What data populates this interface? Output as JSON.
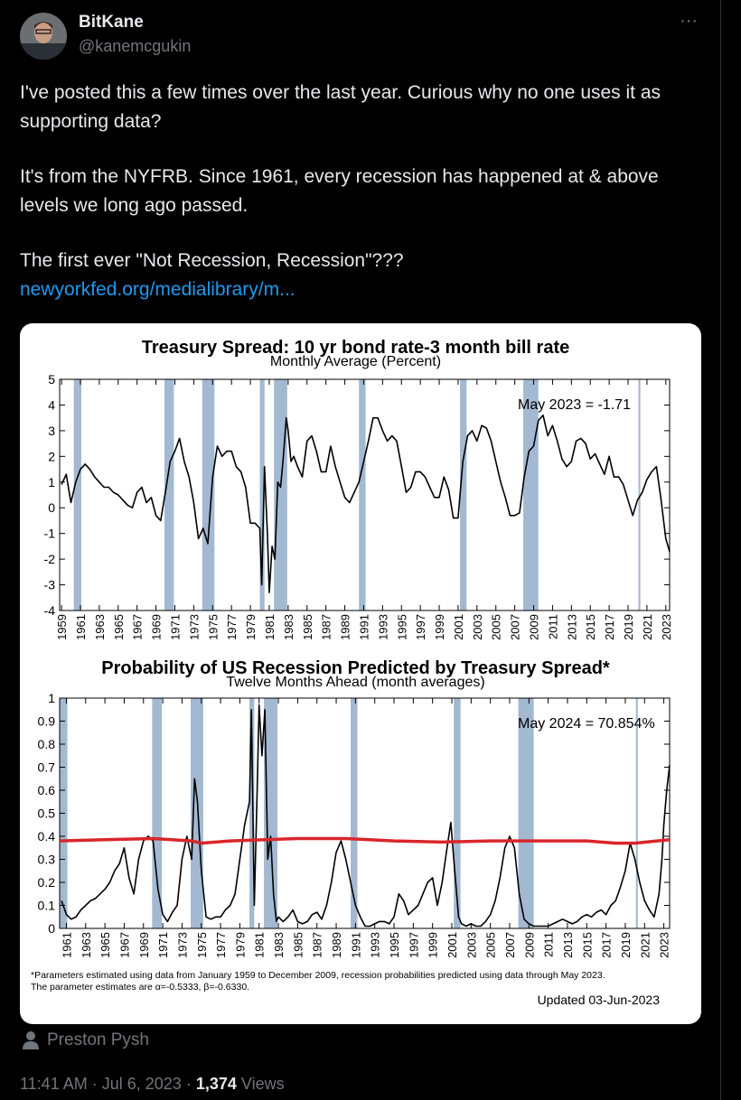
{
  "tweet": {
    "author_name": "BitKane",
    "handle": "@kanemcgukin",
    "more": "···",
    "paragraphs": [
      "I've posted this a few times over the last year. Curious why no one uses it as supporting data?",
      "It's from the NYFRB. Since 1961, every recession has happened at & above levels we long ago passed.",
      "The first ever \"Not Recession, Recession\"???"
    ],
    "link": "newyorkfed.org/medialibrary/m...",
    "attribution": "Preston Pysh",
    "time": "11:41 AM",
    "separator": "·",
    "date": "Jul 6, 2023",
    "views_count": "1,374",
    "views_label": "Views"
  },
  "chart_data": [
    {
      "type": "line",
      "title": "Treasury Spread: 10 yr bond rate-3 month bill rate",
      "subtitle": "Monthly Average (Percent)",
      "annotation": "May 2023 = -1.71",
      "band_color": "#a3b9d2",
      "xlim": [
        1958.8,
        2023.4
      ],
      "ylim": [
        -4,
        5
      ],
      "xticks": [
        1959,
        1961,
        1963,
        1965,
        1967,
        1969,
        1971,
        1973,
        1975,
        1977,
        1979,
        1981,
        1983,
        1985,
        1987,
        1989,
        1991,
        1993,
        1995,
        1997,
        1999,
        2001,
        2003,
        2005,
        2007,
        2009,
        2011,
        2013,
        2015,
        2017,
        2019,
        2021,
        2023
      ],
      "yticks": [
        -4,
        -3,
        -2,
        -1,
        0,
        1,
        2,
        3,
        4,
        5
      ],
      "recessions": [
        [
          1960.3,
          1961.1
        ],
        [
          1969.9,
          1970.9
        ],
        [
          1973.9,
          1975.2
        ],
        [
          1980.0,
          1980.5
        ],
        [
          1981.5,
          1982.9
        ],
        [
          1990.5,
          1991.2
        ],
        [
          2001.2,
          2001.9
        ],
        [
          2007.9,
          2009.5
        ],
        [
          2020.1,
          2020.3
        ]
      ],
      "series": [
        {
          "color": "#000000",
          "x": [
            1959.0,
            1959.5,
            1960.0,
            1960.5,
            1961.0,
            1961.5,
            1962.0,
            1962.5,
            1963.0,
            1963.5,
            1964.0,
            1964.5,
            1965.0,
            1965.5,
            1966.0,
            1966.5,
            1967.0,
            1967.5,
            1968.0,
            1968.5,
            1969.0,
            1969.5,
            1970.0,
            1970.5,
            1971.0,
            1971.5,
            1972.0,
            1972.5,
            1973.0,
            1973.5,
            1974.0,
            1974.5,
            1975.0,
            1975.5,
            1976.0,
            1976.5,
            1977.0,
            1977.5,
            1978.0,
            1978.5,
            1979.0,
            1979.5,
            1980.0,
            1980.2,
            1980.5,
            1980.8,
            1981.0,
            1981.3,
            1981.6,
            1981.9,
            1982.2,
            1982.5,
            1982.8,
            1983.0,
            1983.3,
            1983.6,
            1984.0,
            1984.5,
            1985.0,
            1985.5,
            1986.0,
            1986.5,
            1987.0,
            1987.5,
            1988.0,
            1988.5,
            1989.0,
            1989.5,
            1990.0,
            1990.5,
            1991.0,
            1991.5,
            1992.0,
            1992.5,
            1993.0,
            1993.5,
            1994.0,
            1994.5,
            1995.0,
            1995.5,
            1996.0,
            1996.5,
            1997.0,
            1997.5,
            1998.0,
            1998.5,
            1999.0,
            1999.5,
            2000.0,
            2000.5,
            2001.0,
            2001.5,
            2002.0,
            2002.5,
            2003.0,
            2003.5,
            2004.0,
            2004.5,
            2005.0,
            2005.5,
            2006.0,
            2006.5,
            2007.0,
            2007.5,
            2008.0,
            2008.5,
            2009.0,
            2009.5,
            2010.0,
            2010.5,
            2011.0,
            2011.5,
            2012.0,
            2012.5,
            2013.0,
            2013.5,
            2014.0,
            2014.5,
            2015.0,
            2015.5,
            2016.0,
            2016.5,
            2017.0,
            2017.5,
            2018.0,
            2018.5,
            2019.0,
            2019.5,
            2020.0,
            2020.5,
            2021.0,
            2021.5,
            2022.0,
            2022.5,
            2022.8,
            2023.0,
            2023.4
          ],
          "values": [
            0.9,
            1.3,
            0.2,
            1.0,
            1.5,
            1.7,
            1.5,
            1.2,
            1.0,
            0.8,
            0.8,
            0.6,
            0.5,
            0.3,
            0.1,
            0.0,
            0.6,
            0.8,
            0.2,
            0.4,
            -0.3,
            -0.5,
            0.6,
            1.8,
            2.2,
            2.7,
            1.8,
            1.2,
            0.2,
            -1.2,
            -0.8,
            -1.4,
            1.2,
            2.4,
            2.0,
            2.2,
            2.2,
            1.6,
            1.4,
            0.8,
            -0.6,
            -0.6,
            -0.8,
            -3.0,
            1.6,
            -1.0,
            -3.3,
            -1.5,
            -2.0,
            1.0,
            0.8,
            2.0,
            3.5,
            3.0,
            1.8,
            2.0,
            1.6,
            1.2,
            2.6,
            2.8,
            2.2,
            1.4,
            1.4,
            2.4,
            1.6,
            1.0,
            0.4,
            0.2,
            0.6,
            1.0,
            1.8,
            2.6,
            3.5,
            3.5,
            3.0,
            2.6,
            2.8,
            2.6,
            1.6,
            0.6,
            0.8,
            1.4,
            1.4,
            1.2,
            0.8,
            0.4,
            0.4,
            1.2,
            0.7,
            -0.4,
            -0.4,
            1.8,
            2.8,
            3.0,
            2.6,
            3.2,
            3.1,
            2.6,
            1.8,
            1.0,
            0.4,
            -0.3,
            -0.3,
            -0.2,
            1.2,
            2.2,
            2.4,
            3.4,
            3.6,
            2.8,
            3.2,
            2.6,
            1.9,
            1.6,
            1.8,
            2.6,
            2.7,
            2.5,
            1.9,
            2.1,
            1.7,
            1.3,
            2.0,
            1.2,
            1.2,
            0.9,
            0.3,
            -0.3,
            0.3,
            0.6,
            1.1,
            1.4,
            1.6,
            0.3,
            -0.6,
            -1.2,
            -1.71
          ]
        }
      ]
    },
    {
      "type": "line",
      "title": "Probability of US Recession Predicted by Treasury Spread*",
      "subtitle": "Twelve Months Ahead (month averages)",
      "annotation": "May 2024 = 70.854%",
      "band_color": "#a3b9d2",
      "notes": [
        "*Parameters estimated using data from January 1959 to December 2009, recession probabilities predicted using data through May 2023.",
        "The parameter estimates are α=-0.5333, β=-0.6330."
      ],
      "updated": "Updated 03-Jun-2023",
      "xlim": [
        1960.3,
        2023.6
      ],
      "ylim": [
        0,
        1
      ],
      "xticks": [
        1961,
        1963,
        1965,
        1967,
        1969,
        1971,
        1973,
        1975,
        1977,
        1979,
        1981,
        1983,
        1985,
        1987,
        1989,
        1991,
        1993,
        1995,
        1997,
        1999,
        2001,
        2003,
        2005,
        2007,
        2009,
        2011,
        2013,
        2015,
        2017,
        2019,
        2021,
        2023
      ],
      "yticks": [
        0,
        0.1,
        0.2,
        0.3,
        0.4,
        0.5,
        0.6,
        0.7,
        0.8,
        0.9,
        1
      ],
      "recessions": [
        [
          1960.3,
          1961.1
        ],
        [
          1969.9,
          1970.9
        ],
        [
          1973.9,
          1975.2
        ],
        [
          1980.0,
          1980.5
        ],
        [
          1981.5,
          1982.9
        ],
        [
          1990.5,
          1991.2
        ],
        [
          2001.2,
          2001.9
        ],
        [
          2007.9,
          2009.5
        ],
        [
          2020.1,
          2020.3
        ]
      ],
      "series": [
        {
          "color": "#000000",
          "x": [
            1960.5,
            1961.0,
            1961.5,
            1962.0,
            1962.5,
            1963.0,
            1963.5,
            1964.0,
            1964.5,
            1965.0,
            1965.5,
            1966.0,
            1966.5,
            1967.0,
            1967.5,
            1968.0,
            1968.5,
            1969.0,
            1969.5,
            1970.0,
            1970.5,
            1971.0,
            1971.5,
            1972.0,
            1972.5,
            1973.0,
            1973.5,
            1974.0,
            1974.3,
            1974.6,
            1975.0,
            1975.5,
            1976.0,
            1976.5,
            1977.0,
            1977.5,
            1978.0,
            1978.5,
            1979.0,
            1979.5,
            1980.0,
            1980.2,
            1980.5,
            1980.8,
            1981.0,
            1981.3,
            1981.6,
            1981.9,
            1982.2,
            1982.5,
            1982.8,
            1983.0,
            1983.5,
            1984.0,
            1984.5,
            1985.0,
            1985.5,
            1986.0,
            1986.5,
            1987.0,
            1987.5,
            1988.0,
            1988.5,
            1989.0,
            1989.5,
            1990.0,
            1990.5,
            1991.0,
            1991.5,
            1992.0,
            1992.5,
            1993.0,
            1993.5,
            1994.0,
            1994.5,
            1995.0,
            1995.5,
            1996.0,
            1996.5,
            1997.0,
            1997.5,
            1998.0,
            1998.5,
            1999.0,
            1999.5,
            2000.0,
            2000.5,
            2000.9,
            2001.3,
            2001.7,
            2002.0,
            2002.5,
            2003.0,
            2003.5,
            2004.0,
            2004.5,
            2005.0,
            2005.5,
            2006.0,
            2006.5,
            2007.0,
            2007.5,
            2008.0,
            2008.5,
            2009.0,
            2009.5,
            2010.0,
            2011.0,
            2012.0,
            2012.5,
            2013.0,
            2013.5,
            2014.0,
            2014.5,
            2015.0,
            2015.5,
            2016.0,
            2016.5,
            2017.0,
            2017.5,
            2018.0,
            2018.5,
            2019.0,
            2019.5,
            2020.0,
            2020.5,
            2021.0,
            2021.5,
            2022.0,
            2022.5,
            2022.8,
            2023.0,
            2023.3,
            2023.6
          ],
          "values": [
            0.12,
            0.06,
            0.04,
            0.05,
            0.08,
            0.1,
            0.12,
            0.13,
            0.15,
            0.17,
            0.2,
            0.25,
            0.28,
            0.35,
            0.22,
            0.15,
            0.3,
            0.38,
            0.4,
            0.38,
            0.17,
            0.06,
            0.03,
            0.07,
            0.1,
            0.3,
            0.4,
            0.3,
            0.65,
            0.55,
            0.25,
            0.05,
            0.04,
            0.05,
            0.05,
            0.08,
            0.1,
            0.15,
            0.3,
            0.45,
            0.55,
            0.95,
            0.1,
            0.6,
            0.97,
            0.75,
            0.95,
            0.3,
            0.4,
            0.15,
            0.03,
            0.05,
            0.03,
            0.05,
            0.08,
            0.03,
            0.02,
            0.03,
            0.06,
            0.07,
            0.04,
            0.1,
            0.2,
            0.33,
            0.38,
            0.3,
            0.2,
            0.1,
            0.05,
            0.01,
            0.01,
            0.02,
            0.03,
            0.03,
            0.02,
            0.05,
            0.15,
            0.12,
            0.06,
            0.08,
            0.1,
            0.15,
            0.2,
            0.22,
            0.1,
            0.2,
            0.35,
            0.46,
            0.25,
            0.05,
            0.02,
            0.01,
            0.02,
            0.01,
            0.01,
            0.03,
            0.06,
            0.12,
            0.22,
            0.35,
            0.4,
            0.35,
            0.15,
            0.04,
            0.02,
            0.01,
            0.01,
            0.01,
            0.03,
            0.04,
            0.03,
            0.02,
            0.03,
            0.05,
            0.06,
            0.05,
            0.07,
            0.08,
            0.06,
            0.1,
            0.12,
            0.18,
            0.25,
            0.37,
            0.3,
            0.2,
            0.12,
            0.08,
            0.05,
            0.15,
            0.3,
            0.45,
            0.6,
            0.70854
          ]
        },
        {
          "color": "#d9262b",
          "x": [
            1960.3,
            1965,
            1970,
            1974,
            1975,
            1978,
            1985,
            1990,
            1995,
            2000,
            2005,
            2010,
            2015,
            2018,
            2020,
            2023.6
          ],
          "values": [
            0.38,
            0.385,
            0.39,
            0.38,
            0.37,
            0.38,
            0.39,
            0.39,
            0.38,
            0.375,
            0.38,
            0.38,
            0.38,
            0.37,
            0.37,
            0.385
          ]
        }
      ]
    }
  ]
}
